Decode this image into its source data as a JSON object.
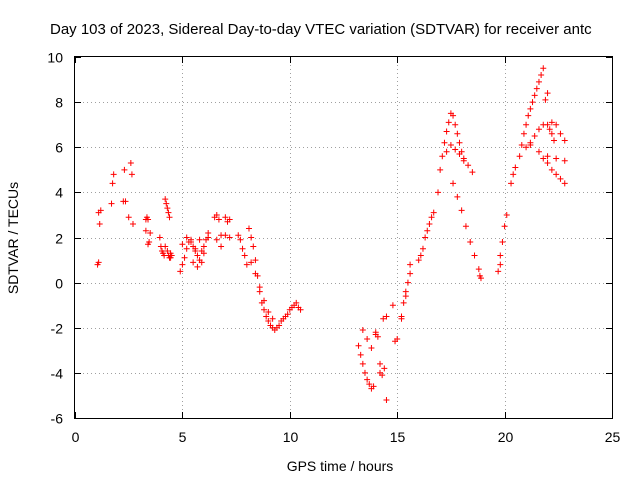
{
  "chart_data": {
    "type": "scatter",
    "title": "Day 103 of 2023, Sidereal Day-to-day VTEC variation (SDTVAR) for receiver antc",
    "xlabel": "GPS time / hours",
    "ylabel": "SDTVAR / TECUs",
    "xlim": [
      0,
      25
    ],
    "ylim": [
      -6,
      10
    ],
    "xticks": [
      0,
      5,
      10,
      15,
      20,
      25
    ],
    "yticks": [
      -6,
      -4,
      -2,
      0,
      2,
      4,
      6,
      8,
      10
    ],
    "grid": true,
    "marker": "+",
    "color": "#ff0000",
    "series": [
      {
        "name": "SDTVAR",
        "x": [
          1.05,
          1.1,
          1.15,
          1.1,
          1.2,
          1.7,
          1.75,
          1.8,
          2.25,
          2.3,
          2.35,
          2.5,
          2.6,
          2.65,
          2.7,
          3.3,
          3.35,
          3.4,
          3.45,
          3.5,
          3.3,
          3.4,
          3.95,
          4.0,
          4.05,
          4.1,
          4.15,
          4.2,
          4.25,
          4.3,
          4.35,
          4.4,
          4.45,
          4.5,
          4.2,
          4.3,
          4.35,
          4.4,
          4.45,
          4.9,
          5.0,
          5.1,
          5.2,
          5.3,
          5.4,
          5.5,
          5.6,
          5.7,
          5.8,
          5.9,
          6.0,
          6.1,
          6.2,
          5.0,
          5.2,
          5.4,
          5.6,
          5.8,
          6.0,
          6.2,
          5.5,
          5.7,
          5.9,
          6.5,
          6.6,
          6.7,
          6.8,
          6.6,
          6.8,
          7.0,
          7.2,
          7.0,
          7.1,
          7.2,
          7.6,
          7.7,
          7.8,
          7.9,
          8.0,
          8.1,
          8.2,
          8.3,
          8.4,
          8.5,
          8.6,
          8.7,
          8.8,
          8.9,
          9.0,
          9.1,
          9.2,
          9.3,
          9.4,
          9.5,
          9.6,
          9.7,
          9.8,
          9.9,
          10.0,
          10.1,
          10.2,
          10.3,
          10.4,
          10.5,
          8.2,
          8.4,
          8.6,
          8.8,
          9.0,
          9.2,
          13.2,
          13.3,
          13.4,
          13.5,
          13.6,
          13.7,
          13.8,
          13.9,
          14.0,
          14.1,
          13.4,
          13.6,
          13.8,
          14.0,
          14.2,
          14.3,
          14.4,
          14.5,
          14.2,
          14.35,
          14.5,
          14.8,
          14.9,
          15.0,
          15.2,
          15.3,
          15.4,
          15.5,
          15.6,
          15.2,
          15.4,
          15.6,
          16.0,
          16.1,
          16.2,
          16.3,
          16.4,
          16.5,
          16.6,
          16.7,
          16.9,
          17.0,
          17.1,
          17.2,
          17.3,
          17.4,
          17.5,
          17.6,
          17.7,
          17.8,
          17.9,
          18.0,
          18.1,
          17.3,
          17.5,
          17.7,
          17.9,
          18.1,
          18.3,
          18.5,
          17.6,
          17.8,
          18.0,
          18.2,
          18.4,
          18.6,
          18.8,
          18.85,
          18.9,
          19.7,
          19.8,
          19.9,
          20.0,
          20.1,
          19.8,
          20.3,
          20.4,
          20.5,
          20.7,
          20.8,
          20.9,
          21.0,
          21.1,
          21.2,
          21.3,
          21.4,
          21.5,
          21.6,
          21.7,
          21.8,
          21.9,
          22.0,
          22.1,
          22.2,
          22.3,
          21.0,
          21.2,
          21.4,
          21.6,
          21.8,
          22.0,
          22.2,
          22.4,
          22.6,
          22.8,
          21.8,
          22.0,
          22.2,
          22.4,
          22.6,
          22.8,
          21.2,
          21.6,
          22.0,
          22.4,
          22.8
        ],
        "y": [
          0.8,
          0.9,
          2.6,
          3.1,
          3.2,
          3.5,
          4.4,
          4.8,
          3.6,
          5.0,
          3.6,
          2.9,
          5.3,
          4.8,
          2.6,
          2.8,
          2.9,
          1.7,
          1.8,
          2.2,
          2.3,
          2.8,
          2.0,
          1.6,
          1.4,
          1.3,
          1.2,
          3.7,
          3.5,
          3.3,
          3.1,
          2.9,
          1.3,
          1.2,
          1.6,
          1.4,
          1.2,
          1.1,
          1.1,
          0.5,
          0.8,
          1.1,
          1.5,
          1.8,
          1.9,
          1.6,
          1.4,
          1.2,
          1.0,
          0.9,
          1.6,
          1.9,
          2.2,
          1.7,
          2.0,
          1.8,
          1.5,
          1.9,
          1.3,
          2.0,
          0.9,
          0.7,
          1.4,
          2.9,
          3.0,
          2.8,
          2.1,
          1.9,
          1.6,
          2.1,
          2.8,
          2.9,
          2.7,
          2.0,
          2.1,
          1.9,
          1.5,
          1.2,
          0.8,
          2.4,
          2.0,
          1.6,
          1.0,
          0.3,
          -0.4,
          -0.9,
          -1.2,
          -1.5,
          -1.7,
          -1.9,
          -2.0,
          -2.1,
          -2.0,
          -1.9,
          -1.7,
          -1.6,
          -1.5,
          -1.4,
          -1.2,
          -1.1,
          -1.0,
          -0.9,
          -1.1,
          -1.2,
          0.9,
          0.4,
          -0.2,
          -0.8,
          -1.3,
          -1.6,
          -2.8,
          -3.2,
          -3.6,
          -4.0,
          -4.3,
          -4.5,
          -4.7,
          -4.6,
          -2.2,
          -2.4,
          -2.1,
          -2.5,
          -2.9,
          -2.3,
          -4.0,
          -4.1,
          -3.8,
          -5.2,
          -3.6,
          -1.6,
          -1.5,
          -1.0,
          -2.6,
          -2.5,
          -1.5,
          -0.9,
          -0.4,
          0.0,
          0.4,
          -1.6,
          -0.6,
          0.8,
          1.0,
          1.2,
          1.5,
          2.0,
          2.3,
          2.6,
          2.9,
          3.1,
          4.0,
          5.0,
          5.6,
          6.2,
          6.7,
          7.1,
          7.5,
          7.4,
          7.0,
          6.6,
          6.2,
          5.8,
          5.4,
          5.8,
          6.1,
          5.9,
          5.7,
          5.5,
          5.2,
          4.9,
          4.4,
          3.8,
          3.2,
          2.5,
          1.8,
          1.2,
          0.6,
          0.3,
          0.2,
          0.5,
          1.2,
          1.8,
          2.5,
          3.0,
          0.8,
          4.4,
          4.8,
          5.1,
          5.6,
          6.1,
          6.6,
          7.0,
          7.4,
          7.7,
          8.0,
          8.3,
          8.6,
          8.9,
          9.2,
          9.5,
          8.1,
          8.4,
          6.8,
          6.6,
          6.3,
          6.0,
          6.2,
          6.5,
          6.8,
          7.0,
          7.0,
          7.1,
          7.0,
          6.6,
          6.3,
          5.5,
          5.3,
          5.0,
          4.8,
          4.6,
          4.4,
          6.1,
          5.8,
          5.6,
          5.5,
          5.4
        ]
      }
    ]
  }
}
